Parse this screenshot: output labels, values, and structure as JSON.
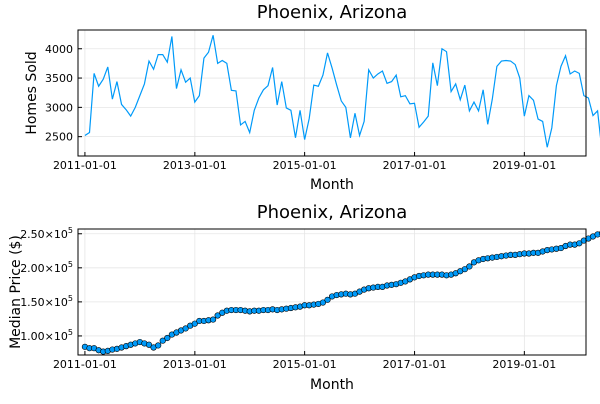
{
  "chart_data": [
    {
      "type": "line",
      "title": "Phoenix, Arizona",
      "xlabel": "Month",
      "ylabel": "Homes Sold",
      "grid": true,
      "legend": "none",
      "series_color": "#009af9",
      "xlim": [
        "2010-11-16",
        "2020-02-15"
      ],
      "ylim": [
        2170,
        4320
      ],
      "x_ticks": [
        "2011-01-01",
        "2013-01-01",
        "2015-01-01",
        "2017-01-01",
        "2019-01-01"
      ],
      "y_ticks": [
        {
          "value": 2500,
          "label": "2500"
        },
        {
          "value": 3000,
          "label": "3000"
        },
        {
          "value": 3500,
          "label": "3500"
        },
        {
          "value": 4000,
          "label": "4000"
        }
      ],
      "x_start": "2011-01",
      "series": [
        {
          "values": [
            2520,
            2570,
            3580,
            3360,
            3480,
            3690,
            3140,
            3440,
            3050,
            2960,
            2850,
            3000,
            3200,
            3400,
            3790,
            3650,
            3900,
            3900,
            3770,
            4210,
            3320,
            3640,
            3430,
            3500,
            3090,
            3200,
            3840,
            3940,
            4230,
            3750,
            3800,
            3750,
            3290,
            3280,
            2700,
            2760,
            2570,
            2950,
            3160,
            3300,
            3370,
            3680,
            3040,
            3440,
            2990,
            2950,
            2480,
            2950,
            2450,
            2810,
            3380,
            3360,
            3550,
            3930,
            3670,
            3380,
            3110,
            3000,
            2480,
            2900,
            2520,
            2760,
            3640,
            3500,
            3570,
            3620,
            3410,
            3440,
            3550,
            3180,
            3200,
            3060,
            3070,
            2660,
            2750,
            2850,
            3760,
            3370,
            4000,
            3950,
            3270,
            3400,
            3130,
            3380,
            2940,
            3090,
            2940,
            3300,
            2710,
            3140,
            3700,
            3790,
            3800,
            3790,
            3730,
            3500,
            2850,
            3200,
            3120,
            2800,
            2760,
            2320,
            2650,
            3370,
            3700,
            3880,
            3570,
            3620,
            3580,
            3200,
            3160,
            2860,
            2940,
            2230
          ]
        }
      ]
    },
    {
      "type": "scatter",
      "title": "Phoenix, Arizona",
      "xlabel": "Month",
      "ylabel": "Median Price ($)",
      "grid": true,
      "legend": "none",
      "series_color": "#009af9",
      "marker_edge_color": "#000000",
      "connected_by_line": true,
      "xlim": [
        "2010-11-16",
        "2020-02-15"
      ],
      "ylim": [
        72000,
        257000
      ],
      "x_ticks": [
        "2011-01-01",
        "2013-01-01",
        "2015-01-01",
        "2017-01-01",
        "2019-01-01"
      ],
      "y_ticks": [
        {
          "value": 100000,
          "mantissa": "1.00",
          "exponent": "5"
        },
        {
          "value": 150000,
          "mantissa": "1.50",
          "exponent": "5"
        },
        {
          "value": 200000,
          "mantissa": "2.00",
          "exponent": "5"
        },
        {
          "value": 250000,
          "mantissa": "2.50",
          "exponent": "5"
        }
      ],
      "x_start": "2011-01",
      "series": [
        {
          "values": [
            84000,
            82000,
            82000,
            79000,
            77000,
            78000,
            80000,
            81000,
            83000,
            85000,
            87000,
            89000,
            91000,
            89000,
            87000,
            83000,
            86000,
            93000,
            97000,
            102000,
            105000,
            108000,
            111000,
            115000,
            118000,
            122000,
            122000,
            123000,
            124000,
            130000,
            134000,
            137000,
            138000,
            138000,
            138000,
            137000,
            136000,
            137000,
            137000,
            138000,
            138000,
            139000,
            138000,
            139000,
            140000,
            141000,
            142000,
            143000,
            145000,
            145000,
            146000,
            147000,
            149000,
            153000,
            158000,
            160000,
            161000,
            162000,
            161000,
            162000,
            165000,
            168000,
            170000,
            171000,
            172000,
            172000,
            174000,
            175000,
            176000,
            178000,
            180000,
            183000,
            186000,
            188000,
            189000,
            190000,
            190000,
            190000,
            190000,
            189000,
            190000,
            192000,
            195000,
            198000,
            202000,
            208000,
            211000,
            213000,
            214000,
            215000,
            216000,
            217000,
            218000,
            219000,
            219000,
            220000,
            221000,
            221000,
            222000,
            222000,
            224000,
            226000,
            227000,
            228000,
            229000,
            232000,
            234000,
            234000,
            236000,
            240000,
            243000,
            246000,
            249000,
            251000
          ]
        }
      ]
    }
  ]
}
